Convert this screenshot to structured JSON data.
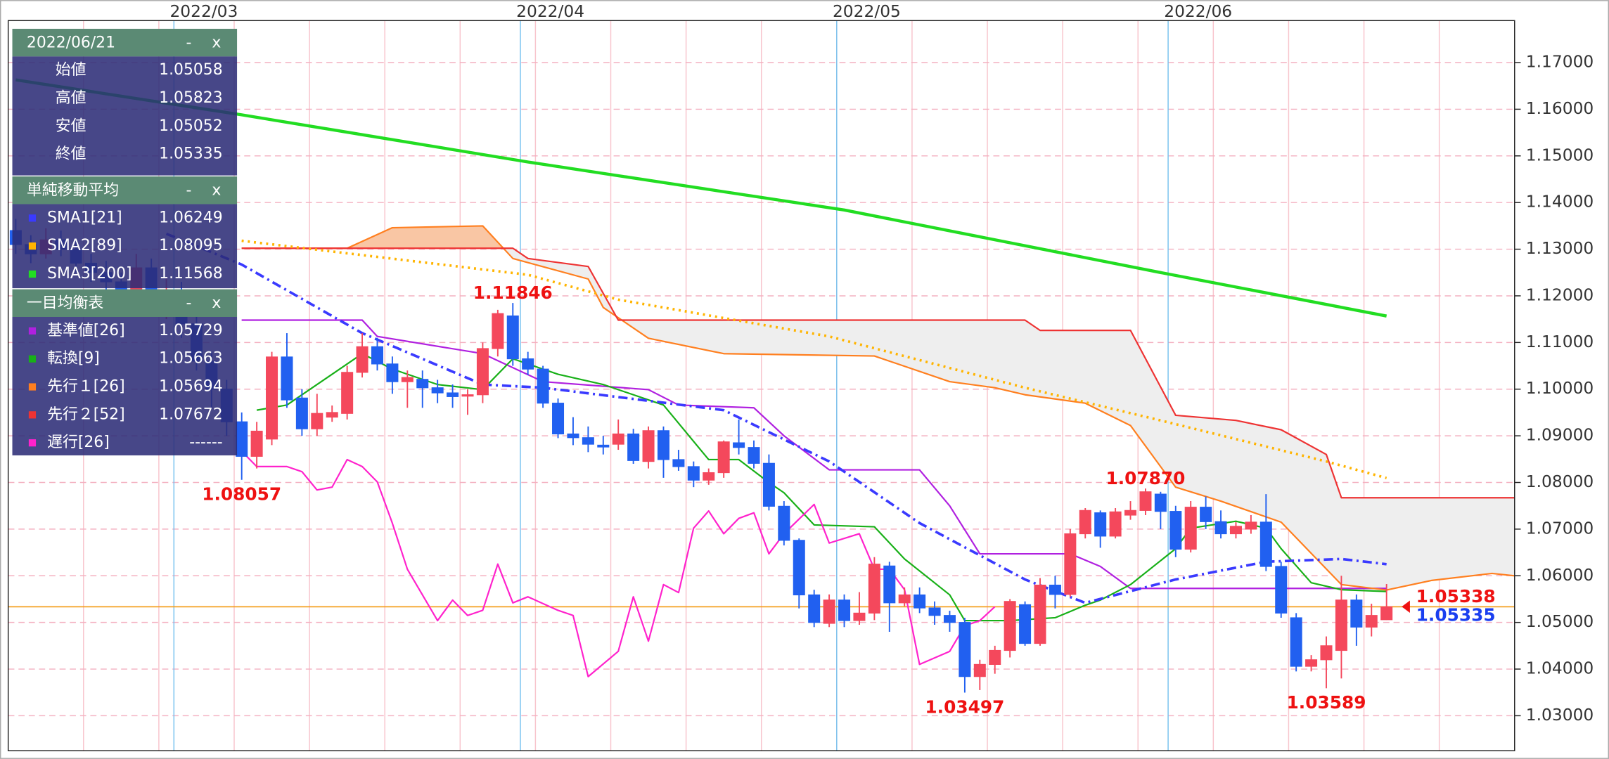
{
  "chart_data": {
    "type": "candlestick",
    "xlim": [
      -0.5,
      99.5
    ],
    "xticks": [
      {
        "value": 10.5,
        "label": "2022/03"
      },
      {
        "value": 33.5,
        "label": "2022/04"
      },
      {
        "value": 54.5,
        "label": "2022/05"
      },
      {
        "value": 76.5,
        "label": "2022/06"
      }
    ],
    "x_minor_ticks": [
      4.5,
      9.5,
      14.5,
      19.5,
      24.5,
      29.5,
      34.5,
      39.5,
      44.5,
      49.5,
      54.5,
      59.5,
      64.5,
      69.5,
      74.5,
      79.5,
      84.5,
      89.5,
      94.5
    ],
    "ylim": [
      1.0225,
      1.179
    ],
    "yticks": [
      {
        "value": 1.03,
        "label": "1.03000"
      },
      {
        "value": 1.04,
        "label": "1.04000"
      },
      {
        "value": 1.05,
        "label": "1.05000"
      },
      {
        "value": 1.06,
        "label": "1.06000"
      },
      {
        "value": 1.07,
        "label": "1.07000"
      },
      {
        "value": 1.08,
        "label": "1.08000"
      },
      {
        "value": 1.09,
        "label": "1.09000"
      },
      {
        "value": 1.1,
        "label": "1.10000"
      },
      {
        "value": 1.11,
        "label": "1.11000"
      },
      {
        "value": 1.12,
        "label": "1.12000"
      },
      {
        "value": 1.13,
        "label": "1.13000"
      },
      {
        "value": 1.14,
        "label": "1.14000"
      },
      {
        "value": 1.15,
        "label": "1.15000"
      },
      {
        "value": 1.16,
        "label": "1.16000"
      },
      {
        "value": 1.17,
        "label": "1.17000"
      }
    ],
    "grid": true,
    "up_color": "#f4485c",
    "down_color": "#2160f0",
    "open": [
      1.134,
      1.131,
      1.129,
      1.132,
      1.13,
      1.127,
      1.125,
      1.123,
      1.1185,
      1.126,
      1.119,
      1.121,
      1.114,
      1.106,
      1.1,
      1.093,
      1.0856,
      1.0893,
      1.1069,
      1.0981,
      1.0915,
      1.094,
      1.0948,
      1.1036,
      1.1091,
      1.1054,
      1.1016,
      1.1021,
      1.1003,
      1.0992,
      1.0985,
      1.0988,
      1.1087,
      1.1157,
      1.1065,
      1.1043,
      1.097,
      1.0904,
      1.0896,
      1.088,
      1.0882,
      1.0904,
      1.0845,
      1.0911,
      1.0849,
      1.0834,
      1.0805,
      1.0821,
      1.0885,
      1.0875,
      1.0841,
      1.0749,
      1.0676,
      1.0559,
      1.0498,
      1.0548,
      1.0504,
      1.052,
      1.0621,
      1.0542,
      1.0559,
      1.0531,
      1.0515,
      1.05,
      1.0384,
      1.041,
      1.044,
      1.0538,
      1.0455,
      1.058,
      1.056,
      1.069,
      1.0735,
      1.0685,
      1.073,
      1.074,
      1.0775,
      1.0738,
      1.0657,
      1.0747,
      1.0716,
      1.069,
      1.07,
      1.0715,
      1.062,
      1.051,
      1.0406,
      1.042,
      1.044,
      1.0548,
      1.049,
      1.05058
    ],
    "high": [
      1.1365,
      1.133,
      1.1345,
      1.134,
      1.132,
      1.129,
      1.1275,
      1.125,
      1.129,
      1.128,
      1.124,
      1.123,
      1.116,
      1.108,
      1.102,
      1.095,
      1.093,
      1.108,
      1.112,
      1.1,
      1.099,
      1.0965,
      1.105,
      1.112,
      1.111,
      1.107,
      1.104,
      1.104,
      1.102,
      1.101,
      1.1,
      1.11,
      1.117,
      1.11846,
      1.108,
      1.105,
      1.098,
      1.094,
      1.092,
      1.09,
      1.0935,
      1.0915,
      1.092,
      1.092,
      1.087,
      1.0845,
      1.083,
      1.089,
      1.0935,
      1.089,
      1.086,
      1.076,
      1.068,
      1.057,
      1.056,
      1.056,
      1.0565,
      1.064,
      1.063,
      1.0575,
      1.0575,
      1.0545,
      1.0525,
      1.051,
      1.042,
      1.045,
      1.055,
      1.0545,
      1.0595,
      1.06,
      1.07,
      1.0745,
      1.074,
      1.0745,
      1.076,
      1.0787,
      1.078,
      1.075,
      1.076,
      1.077,
      1.074,
      1.0715,
      1.073,
      1.0775,
      1.063,
      1.052,
      1.043,
      1.047,
      1.06,
      1.056,
      1.054,
      1.05823
    ],
    "low": [
      1.129,
      1.127,
      1.128,
      1.1285,
      1.125,
      1.123,
      1.121,
      1.116,
      1.117,
      1.117,
      1.115,
      1.111,
      1.104,
      1.096,
      1.09,
      1.08057,
      1.083,
      1.088,
      1.096,
      1.09,
      1.09,
      1.093,
      1.0935,
      1.1025,
      1.104,
      1.099,
      1.096,
      1.096,
      1.097,
      1.096,
      1.0945,
      1.097,
      1.107,
      1.105,
      1.103,
      1.096,
      1.0895,
      1.088,
      1.0865,
      1.086,
      1.087,
      1.084,
      1.083,
      1.081,
      1.0825,
      1.079,
      1.0795,
      1.081,
      1.086,
      1.083,
      1.074,
      1.0665,
      1.053,
      1.049,
      1.049,
      1.049,
      1.0495,
      1.0505,
      1.048,
      1.0535,
      1.052,
      1.0495,
      1.048,
      1.03497,
      1.0355,
      1.039,
      1.0425,
      1.045,
      1.045,
      1.053,
      1.0555,
      1.068,
      1.066,
      1.068,
      1.072,
      1.073,
      1.07,
      1.064,
      1.065,
      1.07,
      1.068,
      1.068,
      1.069,
      1.061,
      1.051,
      1.0395,
      1.0395,
      1.03589,
      1.038,
      1.045,
      1.047,
      1.05052
    ],
    "close": [
      1.131,
      1.129,
      1.132,
      1.13,
      1.127,
      1.125,
      1.123,
      1.1185,
      1.126,
      1.119,
      1.121,
      1.114,
      1.106,
      1.1,
      1.093,
      1.0856,
      1.091,
      1.1069,
      1.0977,
      1.0915,
      1.0948,
      1.095,
      1.1036,
      1.1091,
      1.1054,
      1.1016,
      1.1025,
      1.1003,
      1.0992,
      1.0984,
      1.0988,
      1.1087,
      1.1162,
      1.1065,
      1.1043,
      1.097,
      1.0904,
      1.0896,
      1.0882,
      1.0876,
      1.0904,
      1.0847,
      1.0911,
      1.0849,
      1.0834,
      1.0805,
      1.0821,
      1.0887,
      1.0875,
      1.0841,
      1.0749,
      1.0676,
      1.0559,
      1.05,
      1.0548,
      1.0504,
      1.052,
      1.0625,
      1.0542,
      1.0559,
      1.0531,
      1.0515,
      1.05,
      1.0384,
      1.041,
      1.044,
      1.0545,
      1.0455,
      1.058,
      1.056,
      1.069,
      1.074,
      1.0685,
      1.0737,
      1.074,
      1.078,
      1.0738,
      1.0657,
      1.0747,
      1.0716,
      1.069,
      1.0706,
      1.0715,
      1.062,
      1.052,
      1.0406,
      1.042,
      1.045,
      1.0548,
      1.049,
      1.0515,
      1.05335
    ],
    "series": [
      {
        "name": "SMA1[21]",
        "color": "#3a3aff",
        "dash": "dashdot",
        "width": 2.5,
        "x": [
          10,
          15,
          23,
          31,
          35,
          47,
          54,
          60,
          67,
          71,
          77,
          83,
          88,
          91
        ],
        "values": [
          1.1333,
          1.1267,
          1.112,
          1.101,
          1.1003,
          1.0955,
          1.0845,
          1.0713,
          1.0592,
          1.0542,
          1.0592,
          1.063,
          1.0636,
          1.06249
        ]
      },
      {
        "name": "SMA2[89]",
        "color": "#ffb400",
        "dash": "dot",
        "width": 2.5,
        "x": [
          15,
          34,
          40,
          54,
          67,
          76,
          87,
          91
        ],
        "values": [
          1.1318,
          1.1245,
          1.1192,
          1.1113,
          1.1003,
          1.0933,
          1.0845,
          1.08095
        ]
      },
      {
        "name": "SMA3[200]",
        "color": "#22dd22",
        "dash": "solid",
        "width": 3,
        "x": [
          0,
          15,
          34,
          55,
          76,
          91
        ],
        "values": [
          1.1663,
          1.1588,
          1.1487,
          1.1384,
          1.125,
          1.11568
        ]
      }
    ],
    "ichimoku": [
      {
        "name": "基準値[26]",
        "color": "#b020e0",
        "dash": "solid",
        "width": 1.5,
        "x": [
          15,
          23,
          24,
          31,
          35,
          42,
          44,
          49,
          51,
          54,
          60,
          62,
          64,
          70,
          72,
          74,
          91
        ],
        "values": [
          1.1148,
          1.1148,
          1.1113,
          1.1076,
          1.1016,
          1.0999,
          1.0966,
          1.096,
          1.09,
          1.0827,
          1.0827,
          1.075,
          1.0647,
          1.0647,
          1.062,
          1.05729,
          1.05729
        ]
      },
      {
        "name": "転換[9]",
        "color": "#18b018",
        "dash": "solid",
        "width": 1.5,
        "x": [
          16,
          18,
          21,
          23,
          25,
          28,
          31,
          33,
          36,
          39,
          43,
          46,
          48,
          50,
          51,
          53,
          57,
          59,
          62,
          63,
          66,
          69,
          71,
          72,
          74,
          77,
          78,
          81,
          83,
          84,
          86,
          88,
          91
        ],
        "values": [
          1.0955,
          1.0966,
          1.1032,
          1.1076,
          1.1043,
          1.101,
          1.0999,
          1.1065,
          1.1032,
          1.101,
          1.0966,
          1.0849,
          1.0849,
          1.08,
          1.0778,
          1.0709,
          1.0705,
          1.0636,
          1.0559,
          1.0504,
          1.0504,
          1.051,
          1.0537,
          1.0548,
          1.0581,
          1.0658,
          1.0702,
          1.0717,
          1.0702,
          1.0658,
          1.0585,
          1.057,
          1.05663
        ]
      },
      {
        "name": "先行１[26]",
        "color": "#ff7f1f",
        "dash": "solid",
        "width": 1.5,
        "fill_above": "#f9c6a4",
        "x": [
          15,
          22,
          25,
          31,
          33,
          38,
          39,
          42,
          47,
          57,
          62,
          65,
          67,
          71,
          74,
          77,
          80,
          84,
          88,
          91,
          94,
          98,
          99.5
        ],
        "values": [
          1.1302,
          1.1302,
          1.1346,
          1.135,
          1.128,
          1.1236,
          1.1175,
          1.1109,
          1.1076,
          1.1071,
          1.1016,
          1.1003,
          1.0988,
          1.097,
          1.0922,
          1.079,
          1.076,
          1.0715,
          1.0581,
          1.05694,
          1.059,
          1.0605,
          1.06
        ]
      },
      {
        "name": "先行２[52]",
        "color": "#ee3333",
        "dash": "solid",
        "width": 1.5,
        "fill_above": "#eeeeee",
        "x": [
          15,
          33,
          34,
          38,
          40,
          67,
          68,
          74,
          77,
          81,
          84,
          87,
          88,
          91,
          99.5
        ],
        "values": [
          1.1302,
          1.1302,
          1.128,
          1.1263,
          1.1148,
          1.1148,
          1.1126,
          1.1126,
          1.0944,
          1.0933,
          1.0913,
          1.086,
          1.07672,
          1.07672,
          1.07672
        ]
      },
      {
        "name": "遅行[26]",
        "color": "#ff22cc",
        "dash": "solid",
        "width": 1.5,
        "panel_value": "------",
        "x": [
          15,
          16,
          18,
          19,
          20,
          21,
          22,
          23,
          24,
          25,
          26,
          28,
          29,
          30,
          31,
          32,
          33,
          34,
          36,
          37,
          38,
          40,
          41,
          42,
          43,
          44,
          45,
          46,
          47,
          48,
          49,
          50,
          51,
          53,
          54,
          56,
          57,
          58,
          59,
          60,
          62,
          63,
          64,
          65
        ],
        "values": [
          1.0867,
          1.0834,
          1.0834,
          1.0823,
          1.0784,
          1.079,
          1.0849,
          1.0834,
          1.0801,
          1.0713,
          1.0614,
          1.0504,
          1.0548,
          1.0515,
          1.0526,
          1.0625,
          1.0542,
          1.0555,
          1.0526,
          1.0515,
          1.0384,
          1.0438,
          1.0555,
          1.046,
          1.0581,
          1.0564,
          1.0702,
          1.0739,
          1.069,
          1.0723,
          1.0735,
          1.0647,
          1.069,
          1.0753,
          1.067,
          1.069,
          1.0614,
          1.0614,
          1.057,
          1.041,
          1.0438,
          1.0493,
          1.0504,
          1.05335
        ]
      }
    ],
    "last_price_color": "#f5a020",
    "annotations": [
      {
        "x": 33,
        "value": 1.11846
      },
      {
        "x": 15,
        "value": 1.08057
      },
      {
        "x": 63,
        "value": 1.03497
      },
      {
        "x": 75,
        "value": 1.0787,
        "label": "1.07870"
      },
      {
        "x": 87,
        "value": 1.03589
      }
    ],
    "annotation_color": "#ee1111",
    "price_labels": [
      {
        "value": 1.05338,
        "color": "#ee1111"
      },
      {
        "value": 1.05335,
        "color": "#1a3ff0"
      }
    ]
  },
  "info_panel": {
    "date": "2022/06/21",
    "buttons": [
      "-",
      "x"
    ],
    "ohlc_labels": [
      "始値",
      "高値",
      "安値",
      "終値"
    ],
    "sma_title": "単純移動平均",
    "ichimoku_title": "一目均衡表"
  }
}
